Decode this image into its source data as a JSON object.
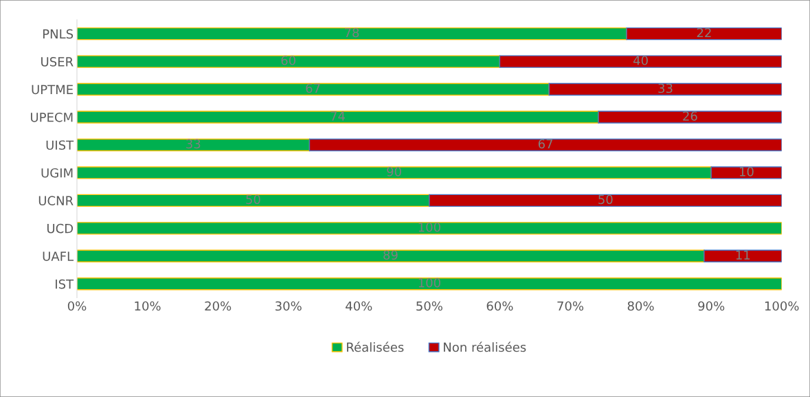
{
  "chart_data": {
    "type": "bar",
    "orientation": "horizontal",
    "stacked": true,
    "categories": [
      "PNLS",
      "USER",
      "UPTME",
      "UPECM",
      "UIST",
      "UGIM",
      "UCNR",
      "UCD",
      "UAFL",
      "IST"
    ],
    "series": [
      {
        "name": "Réalisées",
        "color": "#00b050",
        "values": [
          78,
          60,
          67,
          74,
          33,
          90,
          50,
          100,
          89,
          100
        ]
      },
      {
        "name": "Non réalisées",
        "color": "#c00000",
        "values": [
          22,
          40,
          33,
          26,
          67,
          10,
          50,
          null,
          11,
          null
        ]
      }
    ],
    "xlim": [
      0,
      100
    ],
    "xticks": [
      {
        "value": 0,
        "label": "0%"
      },
      {
        "value": 10,
        "label": "10%"
      },
      {
        "value": 20,
        "label": "20%"
      },
      {
        "value": 30,
        "label": "30%"
      },
      {
        "value": 40,
        "label": "40%"
      },
      {
        "value": 50,
        "label": "50%"
      },
      {
        "value": 60,
        "label": "60%"
      },
      {
        "value": 70,
        "label": "70%"
      },
      {
        "value": 80,
        "label": "80%"
      },
      {
        "value": 90,
        "label": "90%"
      },
      {
        "value": 100,
        "label": "100%"
      }
    ],
    "data_labels": true,
    "legend": "bottom",
    "grid": false
  }
}
